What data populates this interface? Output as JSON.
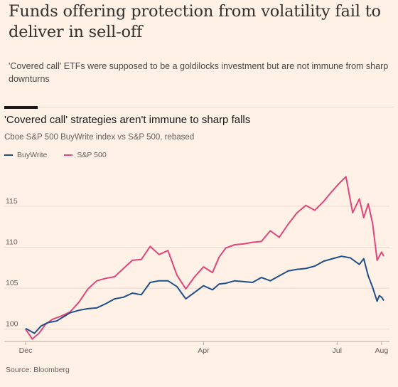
{
  "headline": "Funds offering protection from volatility fail to deliver in sell-off",
  "standfirst": "'Covered call' ETFs were supposed to be a goldilocks investment but are not immune from sharp downturns",
  "source": "Source: Bloomberg",
  "colors": {
    "background": "#fff1e5",
    "buywrite": "#1f4e8c",
    "sp500": "#e0457b",
    "grid": "#e6d9ce"
  },
  "chart_data": {
    "type": "line",
    "title": "'Covered call' strategies aren't immune to sharp falls",
    "subtitle": "Cboe S&P 500 BuyWrite index vs S&P 500, rebased",
    "xlabel": "",
    "ylabel": "",
    "x_tick_labels": [
      "Dec",
      "Apr",
      "Jul",
      "Aug"
    ],
    "x_tick_positions": [
      0,
      4,
      7,
      8
    ],
    "y_ticks": [
      100,
      105,
      110,
      115
    ],
    "ylim": [
      98.5,
      119.5
    ],
    "xlim": [
      0,
      8.05
    ],
    "grid": true,
    "legend_position": "top-left",
    "series": [
      {
        "name": "BuyWrite",
        "color": "#1f4e8c",
        "x": [
          0,
          0.2,
          0.35,
          0.5,
          0.7,
          0.85,
          1.0,
          1.2,
          1.4,
          1.6,
          1.8,
          2.0,
          2.2,
          2.4,
          2.6,
          2.8,
          3.0,
          3.2,
          3.4,
          3.6,
          3.8,
          4.0,
          4.2,
          4.35,
          4.5,
          4.7,
          4.9,
          5.1,
          5.3,
          5.5,
          5.7,
          5.9,
          6.1,
          6.3,
          6.5,
          6.7,
          6.9,
          7.1,
          7.3,
          7.5,
          7.6,
          7.7,
          7.8,
          7.9,
          7.95,
          8.0,
          8.05
        ],
        "values": [
          100.1,
          99.5,
          100.4,
          100.8,
          101.0,
          101.5,
          102.0,
          102.3,
          102.5,
          102.6,
          103.1,
          103.7,
          103.9,
          104.4,
          104.2,
          105.7,
          105.9,
          105.9,
          105.2,
          103.7,
          104.5,
          105.3,
          104.8,
          105.5,
          105.6,
          105.9,
          105.8,
          105.7,
          106.3,
          105.9,
          106.5,
          107.1,
          107.3,
          107.4,
          107.7,
          108.3,
          108.6,
          108.9,
          108.7,
          107.9,
          108.6,
          106.5,
          105.1,
          103.4,
          104.1,
          103.9,
          103.5
        ]
      },
      {
        "name": "S&P 500",
        "color": "#e0457b",
        "x": [
          0,
          0.15,
          0.3,
          0.45,
          0.6,
          0.8,
          1.0,
          1.2,
          1.4,
          1.6,
          1.8,
          2.0,
          2.2,
          2.4,
          2.6,
          2.8,
          3.0,
          3.2,
          3.4,
          3.6,
          3.8,
          4.0,
          4.2,
          4.35,
          4.5,
          4.7,
          4.9,
          5.1,
          5.3,
          5.5,
          5.7,
          5.9,
          6.1,
          6.3,
          6.5,
          6.7,
          6.9,
          7.05,
          7.2,
          7.35,
          7.5,
          7.6,
          7.7,
          7.8,
          7.9,
          8.0,
          8.05
        ],
        "values": [
          100.0,
          98.8,
          99.5,
          100.6,
          101.2,
          101.6,
          102.1,
          103.3,
          104.9,
          105.9,
          106.2,
          106.4,
          107.4,
          108.4,
          108.5,
          110.1,
          109.1,
          109.6,
          106.6,
          104.9,
          106.4,
          107.6,
          106.9,
          108.8,
          109.9,
          110.3,
          110.4,
          110.6,
          110.7,
          112.0,
          111.2,
          112.8,
          114.2,
          115.1,
          114.5,
          115.6,
          116.9,
          117.8,
          118.6,
          114.2,
          115.9,
          113.6,
          115.3,
          112.9,
          108.4,
          109.4,
          108.9
        ]
      }
    ]
  }
}
